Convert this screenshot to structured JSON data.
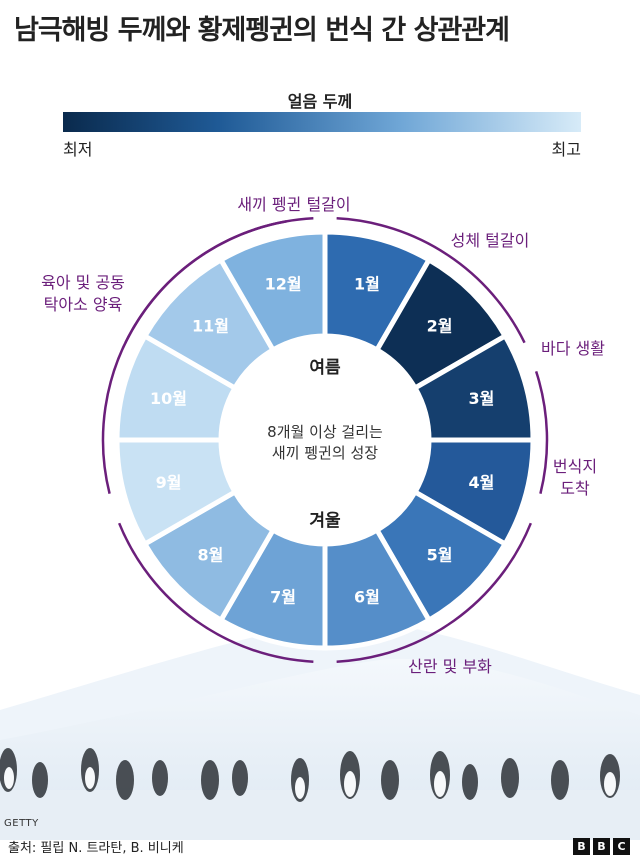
{
  "title": "남극해빙 두께와 황제펭귄의 번식 간 상관관계",
  "legend": {
    "title": "얼음 두께",
    "min_label": "최저",
    "max_label": "최고"
  },
  "wheel": {
    "months": [
      {
        "label": "1월",
        "color": "#2e6bb0",
        "text": "#ffffff"
      },
      {
        "label": "2월",
        "color": "#0d2f55",
        "text": "#ffffff"
      },
      {
        "label": "3월",
        "color": "#153f6e",
        "text": "#ffffff"
      },
      {
        "label": "4월",
        "color": "#24599a",
        "text": "#ffffff"
      },
      {
        "label": "5월",
        "color": "#3a76b8",
        "text": "#ffffff"
      },
      {
        "label": "6월",
        "color": "#558ec9",
        "text": "#ffffff"
      },
      {
        "label": "7월",
        "color": "#6ea3d6",
        "text": "#ffffff"
      },
      {
        "label": "8월",
        "color": "#8fbbe2",
        "text": "#ffffff"
      },
      {
        "label": "9월",
        "color": "#c9e2f4",
        "text": "#ffffff"
      },
      {
        "label": "10월",
        "color": "#bfdcf2",
        "text": "#ffffff"
      },
      {
        "label": "11월",
        "color": "#a3c9ea",
        "text": "#ffffff"
      },
      {
        "label": "12월",
        "color": "#7fb2df",
        "text": "#ffffff"
      }
    ],
    "summer_label": "여름",
    "winter_label": "겨울",
    "center_line1": "8개월 이상 걸리는",
    "center_line2": "새끼 펭귄의 성장"
  },
  "stages": [
    {
      "name": "chick-moult",
      "lines": [
        "새끼 펭귄 털갈이"
      ]
    },
    {
      "name": "adult-moult",
      "lines": [
        "성체 털갈이"
      ]
    },
    {
      "name": "sea-life",
      "lines": [
        "바다 생활"
      ]
    },
    {
      "name": "arrival",
      "lines": [
        "번식지",
        "도착"
      ]
    },
    {
      "name": "laying-hatching",
      "lines": [
        "산란 및 부화"
      ]
    },
    {
      "name": "parenting",
      "lines": [
        "육아 및 공동",
        "탁아소 양육"
      ]
    }
  ],
  "accent_color": "#6b1f7b",
  "photo_credit": "GETTY",
  "source": "출처: 필립 N. 트라탄, B. 비니케",
  "brand": [
    "B",
    "B",
    "C"
  ]
}
